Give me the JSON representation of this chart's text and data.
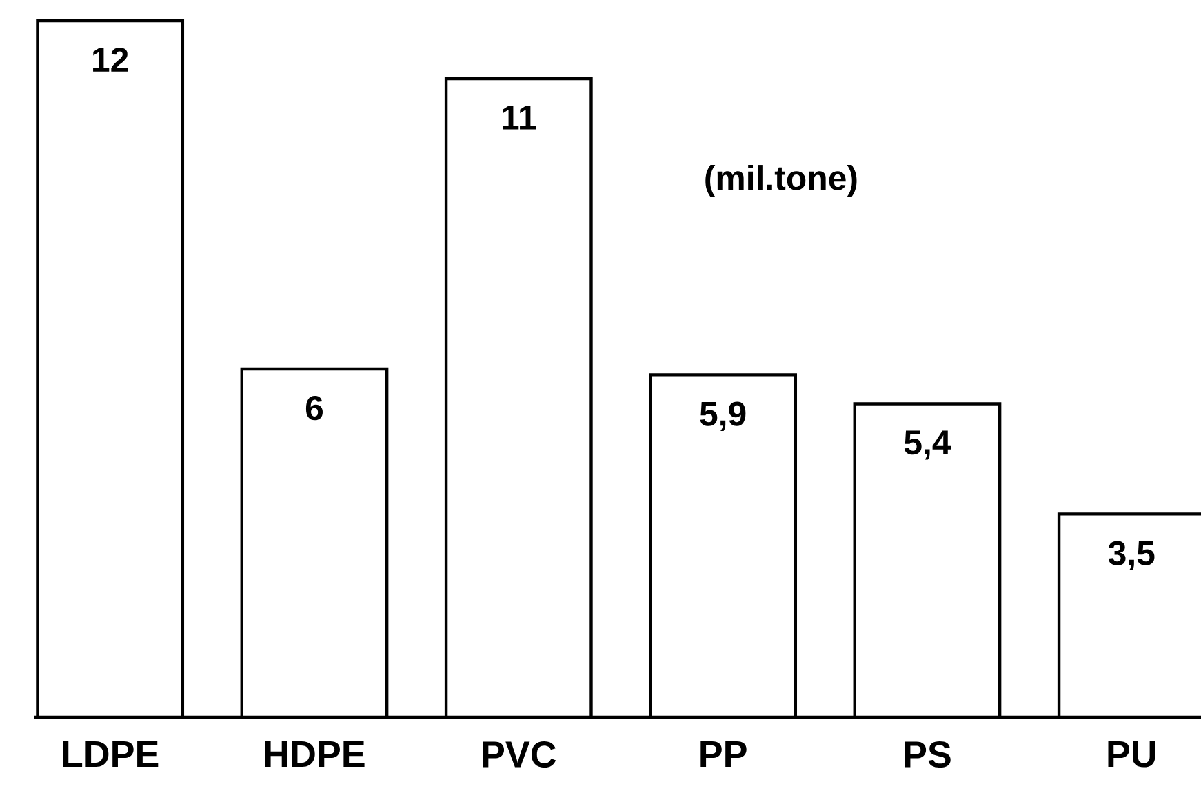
{
  "chart_data": {
    "type": "bar",
    "categories": [
      "LDPE",
      "HDPE",
      "PVC",
      "PP",
      "PS",
      "PU"
    ],
    "values": [
      12,
      6,
      11,
      5.9,
      5.4,
      3.5
    ],
    "value_labels": [
      "12",
      "6",
      "11",
      "5,9",
      "5,4",
      "3,5"
    ],
    "color": "#ffffff",
    "ylim": [
      0,
      12
    ],
    "annotations": [
      "(mil.tone)"
    ]
  }
}
